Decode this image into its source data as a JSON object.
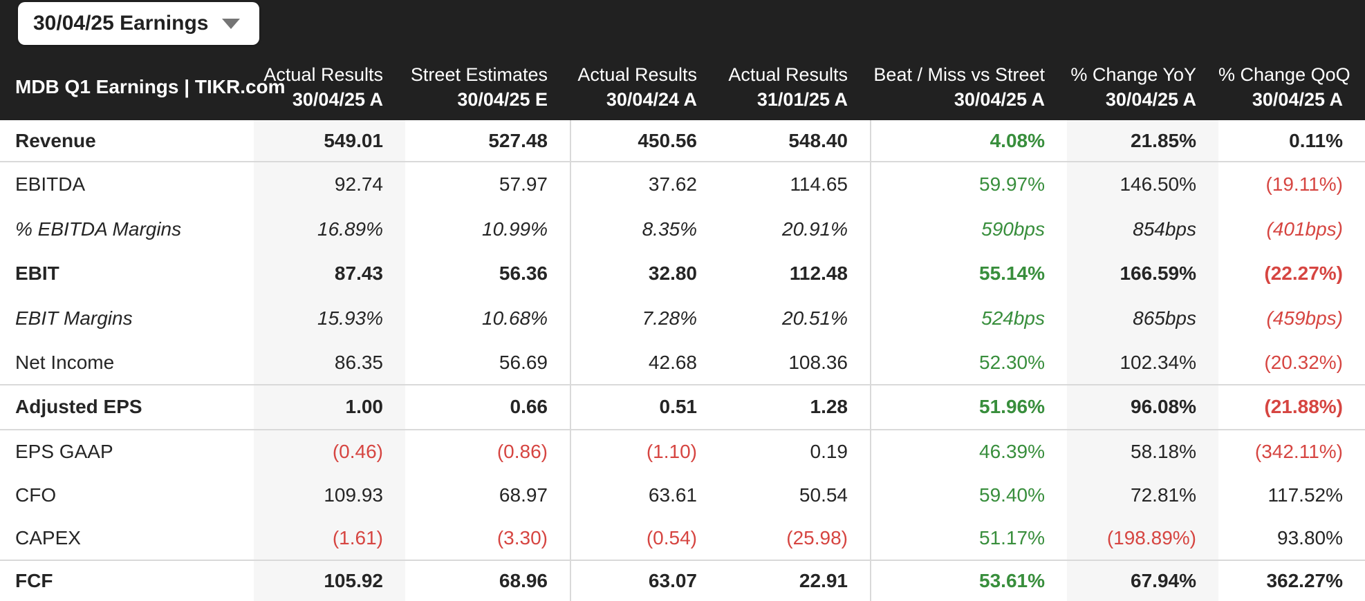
{
  "dropdown": {
    "label": "30/04/25 Earnings"
  },
  "table": {
    "title": "MDB Q1 Earnings | TIKR.com",
    "columns": [
      {
        "line1": "Actual Results",
        "line2": "30/04/25 A"
      },
      {
        "line1": "Street Estimates",
        "line2": "30/04/25 E"
      },
      {
        "line1": "Actual Results",
        "line2": "30/04/24 A"
      },
      {
        "line1": "Actual Results",
        "line2": "31/01/25 A"
      },
      {
        "line1": "Beat / Miss vs Street",
        "line2": "30/04/25 A"
      },
      {
        "line1": "% Change YoY",
        "line2": "30/04/25 A"
      },
      {
        "line1": "% Change QoQ",
        "line2": "30/04/25 A"
      }
    ],
    "colors": {
      "green": "#388e3c",
      "red": "#d64541",
      "header_bg": "#212121",
      "shaded_col": "#f6f6f6"
    },
    "rows": [
      {
        "label": "Revenue",
        "style": "bold",
        "values": [
          {
            "v": "549.01"
          },
          {
            "v": "527.48"
          },
          {
            "v": "450.56"
          },
          {
            "v": "548.40"
          },
          {
            "v": "4.08%",
            "c": "green"
          },
          {
            "v": "21.85%"
          },
          {
            "v": "0.11%"
          }
        ]
      },
      {
        "label": "EBITDA",
        "style": "regular",
        "values": [
          {
            "v": "92.74"
          },
          {
            "v": "57.97"
          },
          {
            "v": "37.62"
          },
          {
            "v": "114.65"
          },
          {
            "v": "59.97%",
            "c": "green"
          },
          {
            "v": "146.50%"
          },
          {
            "v": "(19.11%)",
            "c": "red"
          }
        ]
      },
      {
        "label": "% EBITDA Margins",
        "style": "italic",
        "values": [
          {
            "v": "16.89%"
          },
          {
            "v": "10.99%"
          },
          {
            "v": "8.35%"
          },
          {
            "v": "20.91%"
          },
          {
            "v": "590bps",
            "c": "green"
          },
          {
            "v": "854bps"
          },
          {
            "v": "(401bps)",
            "c": "red"
          }
        ]
      },
      {
        "label": "EBIT",
        "style": "bold",
        "values": [
          {
            "v": "87.43"
          },
          {
            "v": "56.36"
          },
          {
            "v": "32.80"
          },
          {
            "v": "112.48"
          },
          {
            "v": "55.14%",
            "c": "green"
          },
          {
            "v": "166.59%"
          },
          {
            "v": "(22.27%)",
            "c": "red"
          }
        ]
      },
      {
        "label": "EBIT Margins",
        "style": "italic",
        "values": [
          {
            "v": "15.93%"
          },
          {
            "v": "10.68%"
          },
          {
            "v": "7.28%"
          },
          {
            "v": "20.51%"
          },
          {
            "v": "524bps",
            "c": "green"
          },
          {
            "v": "865bps"
          },
          {
            "v": "(459bps)",
            "c": "red"
          }
        ]
      },
      {
        "label": "Net Income",
        "style": "regular",
        "values": [
          {
            "v": "86.35"
          },
          {
            "v": "56.69"
          },
          {
            "v": "42.68"
          },
          {
            "v": "108.36"
          },
          {
            "v": "52.30%",
            "c": "green"
          },
          {
            "v": "102.34%"
          },
          {
            "v": "(20.32%)",
            "c": "red"
          }
        ]
      },
      {
        "label": "Adjusted EPS",
        "style": "bold",
        "values": [
          {
            "v": "1.00"
          },
          {
            "v": "0.66"
          },
          {
            "v": "0.51"
          },
          {
            "v": "1.28"
          },
          {
            "v": "51.96%",
            "c": "green"
          },
          {
            "v": "96.08%"
          },
          {
            "v": "(21.88%)",
            "c": "red"
          }
        ]
      },
      {
        "label": "EPS GAAP",
        "style": "regular",
        "values": [
          {
            "v": "(0.46)",
            "c": "red"
          },
          {
            "v": "(0.86)",
            "c": "red"
          },
          {
            "v": "(1.10)",
            "c": "red"
          },
          {
            "v": "0.19"
          },
          {
            "v": "46.39%",
            "c": "green"
          },
          {
            "v": "58.18%"
          },
          {
            "v": "(342.11%)",
            "c": "red"
          }
        ]
      },
      {
        "label": "CFO",
        "style": "regular",
        "values": [
          {
            "v": "109.93"
          },
          {
            "v": "68.97"
          },
          {
            "v": "63.61"
          },
          {
            "v": "50.54"
          },
          {
            "v": "59.40%",
            "c": "green"
          },
          {
            "v": "72.81%"
          },
          {
            "v": "117.52%"
          }
        ]
      },
      {
        "label": "CAPEX",
        "style": "regular",
        "values": [
          {
            "v": "(1.61)",
            "c": "red"
          },
          {
            "v": "(3.30)",
            "c": "red"
          },
          {
            "v": "(0.54)",
            "c": "red"
          },
          {
            "v": "(25.98)",
            "c": "red"
          },
          {
            "v": "51.17%",
            "c": "green"
          },
          {
            "v": "(198.89%)",
            "c": "red"
          },
          {
            "v": "93.80%"
          }
        ]
      },
      {
        "label": "FCF",
        "style": "bold",
        "values": [
          {
            "v": "105.92"
          },
          {
            "v": "68.96"
          },
          {
            "v": "63.07"
          },
          {
            "v": "22.91"
          },
          {
            "v": "53.61%",
            "c": "green"
          },
          {
            "v": "67.94%"
          },
          {
            "v": "362.27%"
          }
        ]
      }
    ]
  }
}
